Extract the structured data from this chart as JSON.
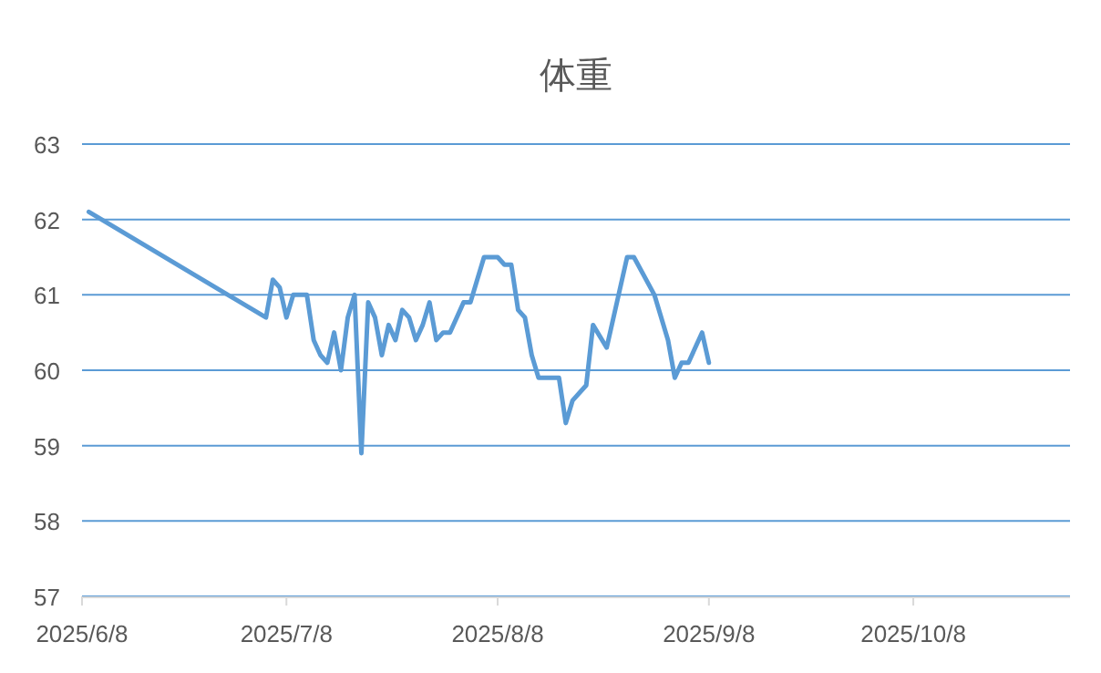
{
  "chart_data": {
    "type": "line",
    "title": "体重",
    "x": [
      "2025-06-09",
      "2025-07-05",
      "2025-07-06",
      "2025-07-07",
      "2025-07-08",
      "2025-07-09",
      "2025-07-10",
      "2025-07-11",
      "2025-07-12",
      "2025-07-13",
      "2025-07-14",
      "2025-07-15",
      "2025-07-16",
      "2025-07-17",
      "2025-07-18",
      "2025-07-19",
      "2025-07-20",
      "2025-07-21",
      "2025-07-22",
      "2025-07-23",
      "2025-07-24",
      "2025-07-25",
      "2025-07-26",
      "2025-07-27",
      "2025-07-28",
      "2025-07-29",
      "2025-07-30",
      "2025-07-31",
      "2025-08-01",
      "2025-08-03",
      "2025-08-04",
      "2025-08-05",
      "2025-08-06",
      "2025-08-08",
      "2025-08-09",
      "2025-08-10",
      "2025-08-11",
      "2025-08-12",
      "2025-08-13",
      "2025-08-14",
      "2025-08-17",
      "2025-08-18",
      "2025-08-19",
      "2025-08-21",
      "2025-08-22",
      "2025-08-24",
      "2025-08-27",
      "2025-08-28",
      "2025-08-31",
      "2025-09-02",
      "2025-09-03",
      "2025-09-04",
      "2025-09-05",
      "2025-09-07",
      "2025-09-08"
    ],
    "series": [
      {
        "color": "#5b9bd5",
        "values": [
          62.1,
          60.7,
          61.2,
          61.1,
          60.7,
          61.0,
          61.0,
          61.0,
          60.4,
          60.2,
          60.1,
          60.5,
          60.0,
          60.7,
          61.0,
          58.9,
          60.9,
          60.7,
          60.2,
          60.6,
          60.4,
          60.8,
          60.7,
          60.4,
          60.6,
          60.9,
          60.4,
          60.5,
          60.5,
          60.9,
          60.9,
          61.2,
          61.5,
          61.5,
          61.4,
          61.4,
          60.8,
          60.7,
          60.2,
          59.9,
          59.9,
          59.3,
          59.6,
          59.8,
          60.6,
          60.3,
          61.5,
          61.5,
          61.0,
          60.4,
          59.9,
          60.1,
          60.1,
          60.5,
          60.1
        ]
      }
    ],
    "xlim": [
      "2025-06-08",
      "2025-10-31"
    ],
    "xticks": [
      {
        "value": "2025-06-08",
        "label": "2025/6/8"
      },
      {
        "value": "2025-07-08",
        "label": "2025/7/8"
      },
      {
        "value": "2025-08-08",
        "label": "2025/8/8"
      },
      {
        "value": "2025-09-08",
        "label": "2025/9/8"
      },
      {
        "value": "2025-10-08",
        "label": "2025/10/8"
      }
    ],
    "ylim": [
      57,
      63
    ],
    "yticks": [
      57,
      58,
      59,
      60,
      61,
      62,
      63
    ],
    "grid": "y",
    "marker": "none",
    "line_style": "solid"
  }
}
